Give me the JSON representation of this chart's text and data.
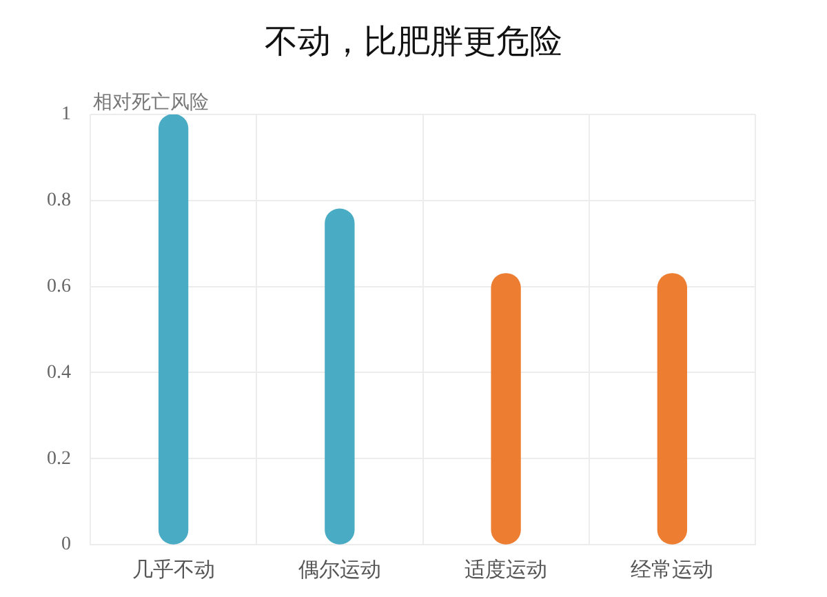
{
  "chart_data": {
    "type": "bar",
    "title": "不动，比肥胖更危险",
    "ylabel": "相对死亡风险",
    "categories": [
      "几乎不动",
      "偶尔运动",
      "适度运动",
      "经常运动"
    ],
    "values": [
      1,
      0.78,
      0.63,
      0.63
    ],
    "colors": [
      "#4aabc4",
      "#4aabc4",
      "#ed7d31",
      "#ed7d31"
    ],
    "ylim": [
      0,
      1
    ],
    "yticks": [
      0,
      0.2,
      0.4,
      0.6,
      0.8,
      1
    ],
    "grid": true
  }
}
